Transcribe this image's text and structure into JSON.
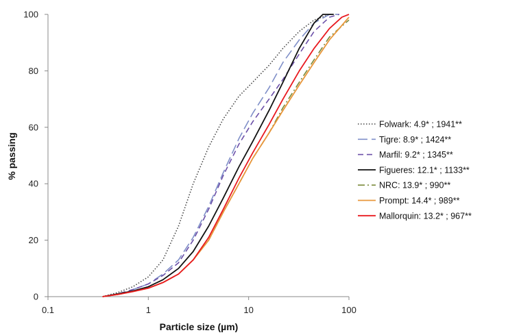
{
  "chart_data": {
    "type": "line",
    "title": "",
    "xlabel": "Particle size (µm)",
    "ylabel": "% passing",
    "xscale": "log",
    "xlim": [
      0.1,
      100
    ],
    "ylim": [
      0,
      100
    ],
    "xticks": [
      "0.1",
      "1",
      "10",
      "100"
    ],
    "yticks": [
      "0",
      "20",
      "40",
      "60",
      "80",
      "100"
    ],
    "grid": false,
    "legend_position": "right",
    "series": [
      {
        "name": "Folwark: 4.9* ; 1941**",
        "color": "#444444",
        "dash": "dotted",
        "x": [
          0.35,
          0.5,
          0.7,
          1,
          1.4,
          2,
          2.8,
          4,
          5.6,
          8,
          11,
          16,
          22,
          32,
          45,
          64,
          75
        ],
        "y": [
          0,
          1.5,
          3.5,
          7,
          13,
          25,
          40,
          53,
          63,
          71,
          76,
          82,
          88,
          94,
          98,
          100,
          100
        ]
      },
      {
        "name": "Tigre: 8.9* ; 1424**",
        "color": "#7f8fc8",
        "dash": "longdash",
        "x": [
          0.35,
          0.5,
          0.7,
          1,
          1.4,
          2,
          2.8,
          4,
          5.6,
          8,
          11,
          16,
          22,
          32,
          45,
          64,
          80
        ],
        "y": [
          0,
          1,
          2.5,
          4.5,
          8,
          13,
          21,
          32,
          44,
          56,
          65,
          74,
          83,
          91,
          97,
          100,
          100
        ]
      },
      {
        "name": "Marfil: 9.2* ; 1345**",
        "color": "#6b4fa8",
        "dash": "dash",
        "x": [
          0.35,
          0.5,
          0.7,
          1,
          1.4,
          2,
          2.8,
          4,
          5.6,
          8,
          11,
          16,
          22,
          32,
          45,
          64,
          80
        ],
        "y": [
          0,
          1,
          2.5,
          4.5,
          7.5,
          12,
          20,
          31,
          43,
          54,
          62,
          70,
          77,
          86,
          94,
          99,
          100
        ]
      },
      {
        "name": "Figueres: 12.1* ; 1133**",
        "color": "#111111",
        "dash": "solid",
        "x": [
          0.35,
          0.5,
          0.7,
          1,
          1.4,
          2,
          2.8,
          4,
          5.6,
          8,
          11,
          16,
          22,
          32,
          45,
          55,
          70
        ],
        "y": [
          0,
          1,
          2,
          3.5,
          6,
          10,
          16,
          25,
          35,
          46,
          55,
          66,
          76,
          88,
          97,
          100,
          100
        ]
      },
      {
        "name": "NRC: 13.9* ; 990**",
        "color": "#7a8a3a",
        "dash": "dashdot",
        "x": [
          0.35,
          0.5,
          0.7,
          1,
          1.4,
          2,
          2.8,
          4,
          5.6,
          8,
          11,
          16,
          22,
          32,
          45,
          64,
          100
        ],
        "y": [
          0,
          0.8,
          1.8,
          3,
          5,
          8,
          13,
          20,
          30,
          40,
          49,
          58,
          67,
          76,
          84,
          92,
          98
        ]
      },
      {
        "name": "Prompt: 14.4* ; 989**",
        "color": "#e8963a",
        "dash": "solid",
        "x": [
          0.35,
          0.5,
          0.7,
          1,
          1.4,
          2,
          2.8,
          4,
          5.6,
          8,
          11,
          16,
          22,
          32,
          45,
          64,
          100
        ],
        "y": [
          0,
          0.8,
          1.8,
          3,
          5,
          8,
          13,
          20,
          30,
          40,
          49,
          58,
          66,
          75,
          83,
          91,
          99
        ]
      },
      {
        "name": "Mallorquin: 13.2* ; 967**",
        "color": "#e8191f",
        "dash": "solid",
        "x": [
          0.35,
          0.5,
          0.7,
          1,
          1.4,
          2,
          2.8,
          4,
          5.6,
          8,
          11,
          16,
          22,
          32,
          45,
          64,
          85,
          100
        ],
        "y": [
          0,
          0.8,
          1.8,
          3,
          5,
          8,
          13,
          21,
          31,
          42,
          51,
          61,
          70,
          80,
          88,
          95,
          99,
          100
        ]
      }
    ]
  }
}
